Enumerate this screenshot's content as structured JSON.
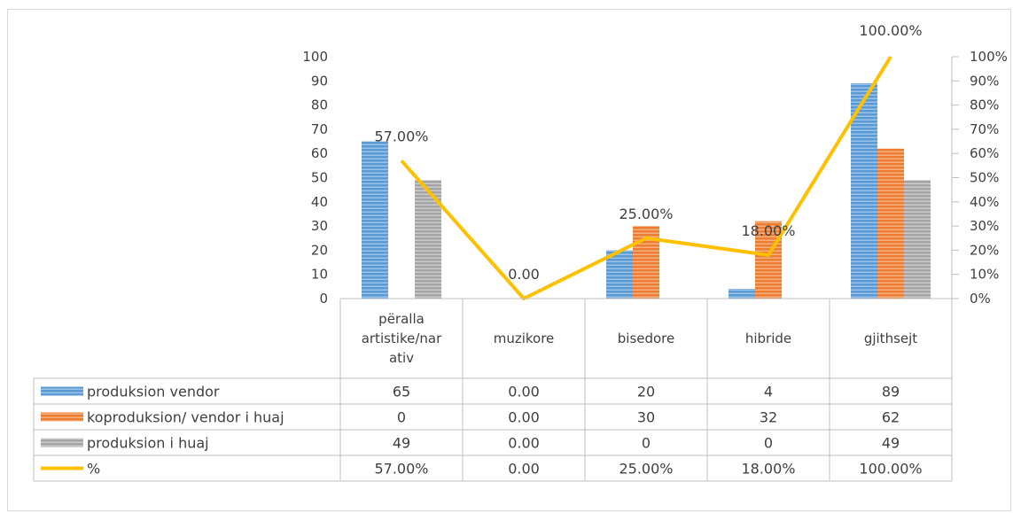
{
  "chart_data": {
    "type": "bar",
    "categories": [
      "përalla artistike/narativ",
      "muzikore",
      "bisedore",
      "hibride",
      "gjithsejt"
    ],
    "category_lines": [
      [
        "përalla",
        "artistike/nar",
        "ativ"
      ],
      [
        "muzikore"
      ],
      [
        "bisedore"
      ],
      [
        "hibride"
      ],
      [
        "gjithsejt"
      ]
    ],
    "series": [
      {
        "name": "produksion vendor",
        "values": [
          65,
          0,
          20,
          4,
          89
        ],
        "color": "#5b9bd5",
        "kind": "bar",
        "cells": [
          "65",
          "0.00",
          "20",
          "4",
          "89"
        ]
      },
      {
        "name": "koproduksion/ vendor i huaj",
        "values": [
          0,
          0,
          30,
          32,
          62
        ],
        "color": "#ed7d31",
        "kind": "bar",
        "cells": [
          "0",
          "0.00",
          "30",
          "32",
          "62"
        ]
      },
      {
        "name": "produksion i huaj",
        "values": [
          49,
          0,
          0,
          0,
          49
        ],
        "color": "#a5a5a5",
        "kind": "bar",
        "cells": [
          "49",
          "0.00",
          "0",
          "0",
          "49"
        ]
      },
      {
        "name": "%",
        "values": [
          0.57,
          0,
          0.25,
          0.18,
          1.0
        ],
        "color": "#ffc000",
        "kind": "line",
        "axis": "secondary",
        "cells": [
          "57.00%",
          "0.00",
          "25.00%",
          "18.00%",
          "100.00%"
        ]
      }
    ],
    "line_labels": [
      "57.00%",
      "0.00",
      "25.00%",
      "18.00%",
      "100.00%"
    ],
    "ylim": [
      0,
      100
    ],
    "y_ticks": [
      "0",
      "10",
      "20",
      "30",
      "40",
      "50",
      "60",
      "70",
      "80",
      "90",
      "100"
    ],
    "y2lim": [
      0,
      1
    ],
    "y2_ticks": [
      "0%",
      "10%",
      "20%",
      "30%",
      "40%",
      "50%",
      "60%",
      "70%",
      "80%",
      "90%",
      "100%"
    ],
    "data_table": true,
    "grid": false
  }
}
